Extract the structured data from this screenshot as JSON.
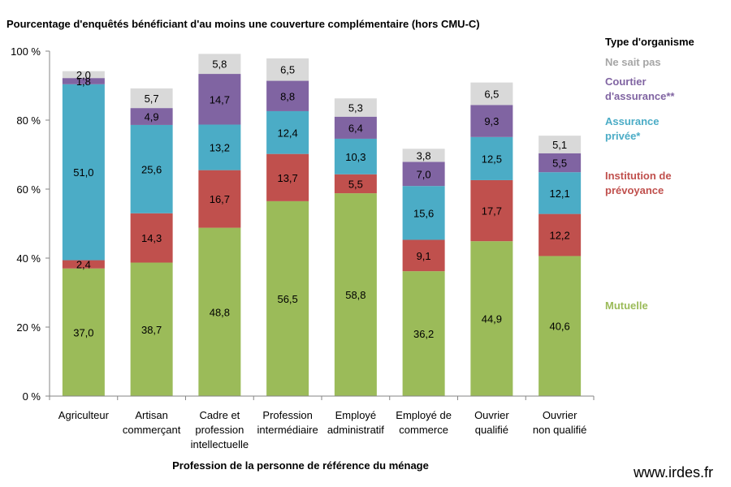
{
  "chart_data": {
    "type": "bar",
    "stacked": true,
    "title": "Pourcentage d'enquêtés bénéficiant d'au moins une couverture complémentaire (hors CMU-C)",
    "xlabel": "Profession de la personne de référence du ménage",
    "ylim": [
      0,
      100
    ],
    "yticks": [
      "0 %",
      "20 %",
      "40 %",
      "60 %",
      "80 %",
      "100 %"
    ],
    "categories": [
      [
        "Agriculteur"
      ],
      [
        "Artisan",
        "commerçant"
      ],
      [
        "Cadre et",
        "profession",
        "intellectuelle"
      ],
      [
        "Profession",
        "intermédiaire"
      ],
      [
        "Employé",
        "administratif"
      ],
      [
        "Employé de",
        "commerce"
      ],
      [
        "Ouvrier",
        "qualifié"
      ],
      [
        "Ouvrier",
        "non qualifié"
      ]
    ],
    "legend_title": "Type d'organisme",
    "legend_placement": "right",
    "series": [
      {
        "name": "Mutuelle",
        "legend_lines": [
          "Mutuelle"
        ],
        "color": "#9bbb59",
        "values": [
          37.0,
          38.7,
          48.8,
          56.5,
          58.8,
          36.2,
          44.9,
          40.6
        ],
        "labels": [
          "37,0",
          "38,7",
          "48,8",
          "56,5",
          "58,8",
          "36,2",
          "44,9",
          "40,6"
        ]
      },
      {
        "name": "Institution de prévoyance",
        "legend_lines": [
          "Institution de",
          "prévoyance"
        ],
        "color": "#c0504d",
        "values": [
          2.4,
          14.3,
          16.7,
          13.7,
          5.5,
          9.1,
          17.7,
          12.2
        ],
        "labels": [
          "2,4",
          "14,3",
          "16,7",
          "13,7",
          "5,5",
          "9,1",
          "17,7",
          "12,2"
        ]
      },
      {
        "name": "Assurance privée*",
        "legend_lines": [
          "Assurance",
          "privée*"
        ],
        "color": "#4bacc6",
        "values": [
          51.0,
          25.6,
          13.2,
          12.4,
          10.3,
          15.6,
          12.5,
          12.1
        ],
        "labels": [
          "51,0",
          "25,6",
          "13,2",
          "12,4",
          "10,3",
          "15,6",
          "12,5",
          "12,1"
        ]
      },
      {
        "name": "Courtier d'assurance**",
        "legend_lines": [
          "Courtier",
          "d'assurance**"
        ],
        "color": "#8064a2",
        "values": [
          1.8,
          4.9,
          14.7,
          8.8,
          6.4,
          7.0,
          9.3,
          5.5
        ],
        "labels": [
          "1,8",
          "4,9",
          "14,7",
          "8,8",
          "6,4",
          "7,0",
          "9,3",
          "5,5"
        ]
      },
      {
        "name": "Ne sait pas",
        "legend_lines": [
          "Ne sait pas"
        ],
        "color": "#a6a6a6",
        "fill": "#d9d9d9",
        "values": [
          2.0,
          5.7,
          5.8,
          6.5,
          5.3,
          3.8,
          6.5,
          5.1
        ],
        "labels": [
          "2,0",
          "5,7",
          "5,8",
          "6,5",
          "5,3",
          "3,8",
          "6,5",
          "5,1"
        ]
      }
    ]
  },
  "watermark": "www.irdes.fr"
}
